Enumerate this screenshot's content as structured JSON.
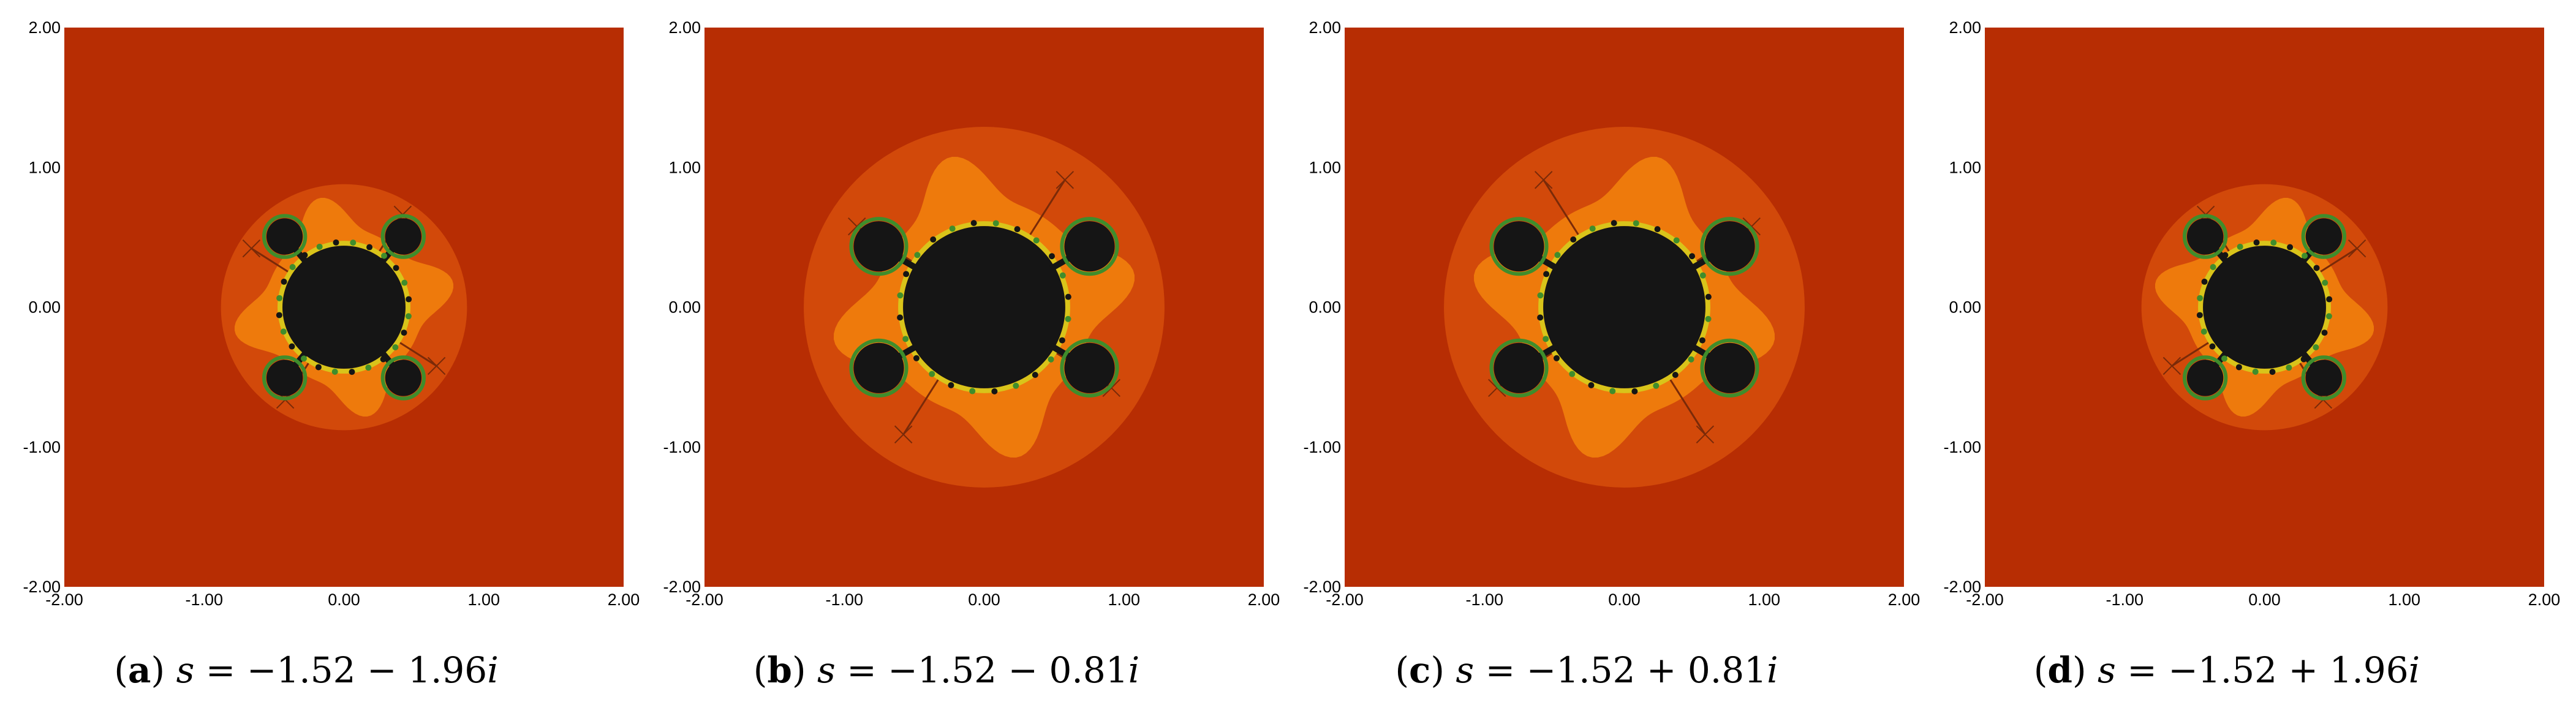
{
  "x_ticks": [
    "-2.00",
    "-1.00",
    "0.00",
    "1.00",
    "2.00"
  ],
  "y_ticks": [
    "2.00",
    "1.00",
    "0.00",
    "-1.00",
    "-2.00"
  ],
  "colors": {
    "background": "#b72d03",
    "halo": "#d2490a",
    "band": "#ee7a0c",
    "set": "#151515",
    "edge_yellow": "#d9c41a",
    "edge_green": "#3f8d2c"
  },
  "panels": [
    {
      "letter": "a",
      "var": "s",
      "real": "−1.52",
      "op": "−",
      "imag_value": "1.96",
      "imag_unit": "i",
      "s_real": -1.52,
      "s_imag": -1.96,
      "halo_radius": 0.88,
      "main_radius": 0.44,
      "band_extent": 0.8,
      "bulb_dist": 0.66,
      "bulb_radius": 0.13,
      "bulb_angles": [
        50,
        130,
        230,
        310
      ]
    },
    {
      "letter": "b",
      "var": "s",
      "real": "−1.52",
      "op": "−",
      "imag_value": "0.81",
      "imag_unit": "i",
      "s_real": -1.52,
      "s_imag": -0.81,
      "halo_radius": 1.29,
      "main_radius": 0.58,
      "band_extent": 1.1,
      "bulb_dist": 0.87,
      "bulb_radius": 0.18,
      "bulb_angles": [
        30,
        150,
        210,
        330
      ]
    },
    {
      "letter": "c",
      "var": "s",
      "real": "−1.52",
      "op": "+",
      "imag_value": "0.81",
      "imag_unit": "i",
      "s_real": -1.52,
      "s_imag": 0.81,
      "halo_radius": 1.29,
      "main_radius": 0.58,
      "band_extent": 1.1,
      "bulb_dist": 0.87,
      "bulb_radius": 0.18,
      "bulb_angles": [
        30,
        150,
        210,
        330
      ]
    },
    {
      "letter": "d",
      "var": "s",
      "real": "−1.52",
      "op": "+",
      "imag_value": "1.96",
      "imag_unit": "i",
      "s_real": -1.52,
      "s_imag": 1.96,
      "halo_radius": 0.88,
      "main_radius": 0.44,
      "band_extent": 0.8,
      "bulb_dist": 0.66,
      "bulb_radius": 0.13,
      "bulb_angles": [
        50,
        130,
        230,
        310
      ]
    }
  ]
}
